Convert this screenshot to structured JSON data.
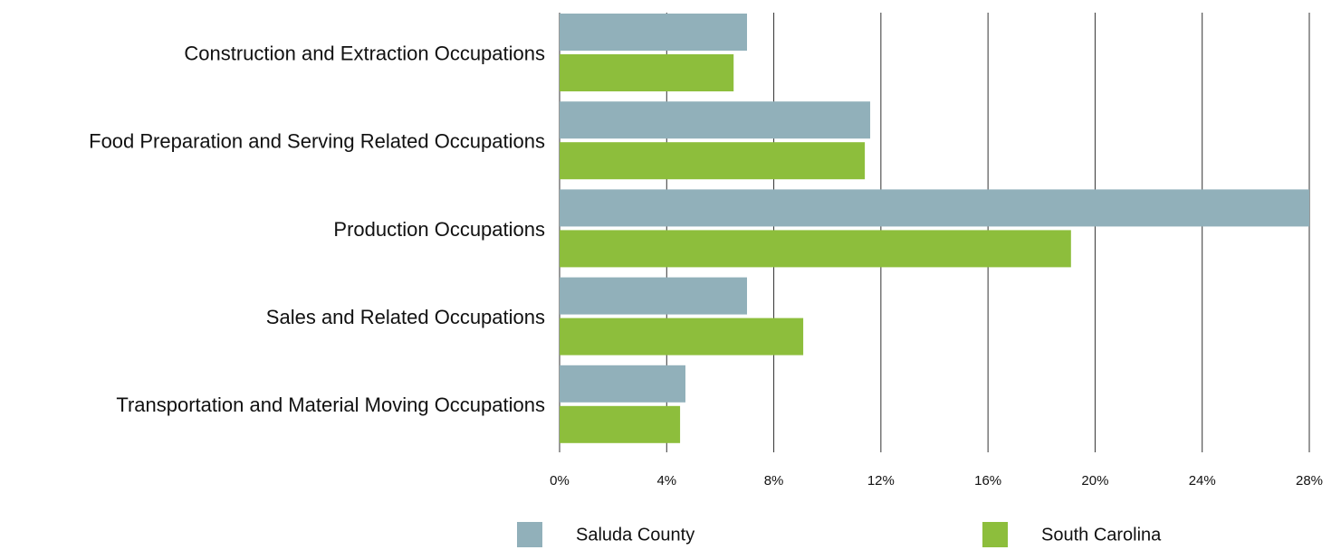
{
  "chart_data": {
    "type": "bar",
    "orientation": "horizontal",
    "categories": [
      "Construction and Extraction Occupations",
      "Food Preparation and Serving Related Occupations",
      "Production Occupations",
      "Sales and Related Occupations",
      "Transportation and Material Moving Occupations"
    ],
    "series": [
      {
        "name": "Saluda County",
        "color": "#91b0ba",
        "values": [
          7.0,
          11.6,
          28.0,
          7.0,
          4.7
        ]
      },
      {
        "name": "South Carolina",
        "color": "#8dbe3c",
        "values": [
          6.5,
          11.4,
          19.1,
          9.1,
          4.5
        ]
      }
    ],
    "xlim": [
      0,
      28
    ],
    "xticks": [
      {
        "value": 0,
        "label": "0%"
      },
      {
        "value": 4,
        "label": "4%"
      },
      {
        "value": 8,
        "label": "8%"
      },
      {
        "value": 12,
        "label": "12%"
      },
      {
        "value": 16,
        "label": "16%"
      },
      {
        "value": 20,
        "label": "20%"
      },
      {
        "value": 24,
        "label": "24%"
      },
      {
        "value": 28,
        "label": "28%"
      }
    ],
    "grid": true
  }
}
